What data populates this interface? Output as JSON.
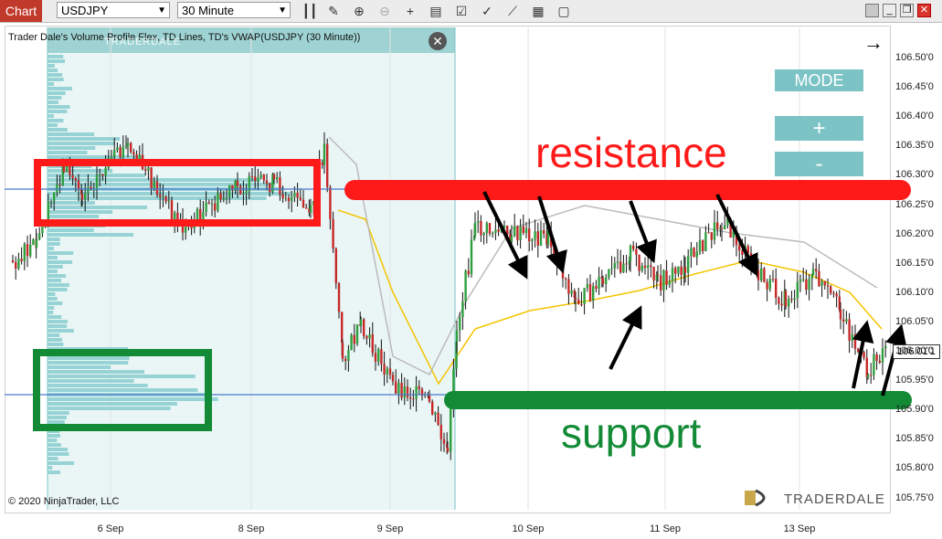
{
  "toolbar": {
    "chart_tab": "Chart",
    "instrument": "USDJPY",
    "timeframe": "30 Minute"
  },
  "chart": {
    "header": "Trader Dale's Volume Profile Flex, TD Lines, TD's VWAP(USDJPY (30 Minute))",
    "watermark_small": "TRADERDALE",
    "copyright": "© 2020 NinjaTrader, LLC",
    "logo_text": "TRADERDALE",
    "logo_mark": "TD",
    "current_price": "106.01'1",
    "annotations": {
      "resistance": "resistance",
      "support": "support"
    },
    "panel": {
      "mode": "MODE",
      "plus": "+",
      "minus": "-"
    },
    "colors": {
      "resistance": "#ff1a1a",
      "support": "#138a36",
      "profile": "#8ecfd1",
      "vwap": "#f5c400"
    }
  },
  "chart_data": {
    "type": "candlestick",
    "y_ticks": [
      "106.50'0",
      "106.45'0",
      "106.40'0",
      "106.35'0",
      "106.30'0",
      "106.25'0",
      "106.20'0",
      "106.15'0",
      "106.10'0",
      "106.05'0",
      "106.00'0",
      "105.95'0",
      "105.90'0",
      "105.85'0",
      "105.80'0",
      "105.75'0"
    ],
    "x_ticks": [
      "6 Sep",
      "8 Sep",
      "9 Sep",
      "10 Sep",
      "11 Sep",
      "13 Sep"
    ],
    "ylim": [
      105.74,
      106.535
    ],
    "resistance_level": 106.28,
    "support_level": 105.93
  }
}
